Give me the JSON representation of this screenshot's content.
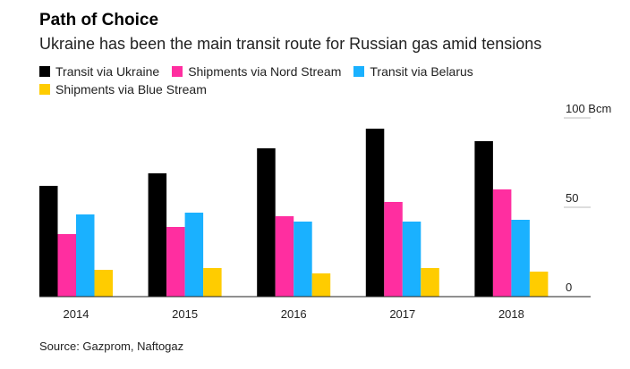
{
  "chart_data": {
    "type": "bar",
    "title": "Path of Choice",
    "subtitle": "Ukraine has been the main transit route for Russian gas amid tensions",
    "categories": [
      "2014",
      "2015",
      "2016",
      "2017",
      "2018"
    ],
    "series": [
      {
        "name": "Transit via Ukraine",
        "color": "#000000",
        "values": [
          62,
          69,
          83,
          94,
          87
        ]
      },
      {
        "name": "Shipments via Nord Stream",
        "color": "#ff2ea0",
        "values": [
          35,
          39,
          45,
          53,
          60
        ]
      },
      {
        "name": "Transit via Belarus",
        "color": "#1ab1ff",
        "values": [
          46,
          47,
          42,
          42,
          43
        ]
      },
      {
        "name": "Shipments via Blue Stream",
        "color": "#ffcc00",
        "values": [
          15,
          16,
          13,
          16,
          14
        ]
      }
    ],
    "yticks": [
      {
        "value": 0,
        "label": "0"
      },
      {
        "value": 50,
        "label": "50"
      },
      {
        "value": 100,
        "label": "100 Bcm"
      }
    ],
    "ylim": [
      0,
      100
    ],
    "legend_position": "top-left",
    "source": "Source: Gazprom, Naftogaz"
  }
}
